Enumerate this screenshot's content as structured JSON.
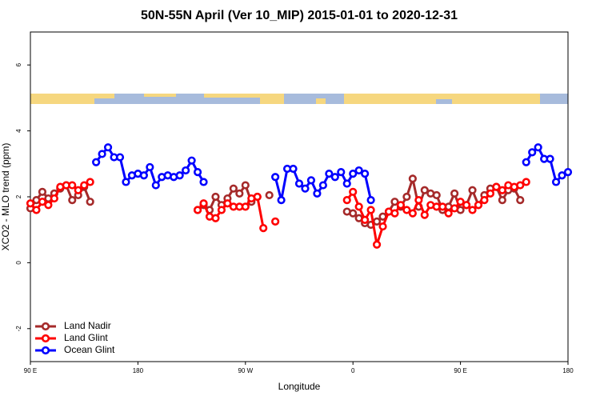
{
  "chart_data": {
    "type": "line",
    "title": "50N-55N April (Ver 10_MIP)   2015-01-01 to 2020-12-31",
    "xlabel": "Longitude",
    "ylabel": "XCO2 - MLO trend (ppm)",
    "x": [
      90,
      95,
      100,
      105,
      110,
      115,
      120,
      125,
      130,
      135,
      140,
      145,
      150,
      155,
      160,
      165,
      170,
      175,
      180,
      185,
      190,
      195,
      200,
      205,
      210,
      215,
      220,
      225,
      230,
      235,
      240,
      245,
      250,
      255,
      260,
      265,
      270,
      275,
      280,
      285,
      290,
      295,
      300,
      305,
      310,
      315,
      320,
      325,
      330,
      335,
      340,
      345,
      350,
      355,
      360,
      365,
      370,
      375,
      380,
      385,
      390,
      395,
      400,
      405,
      410,
      415,
      420,
      425,
      430,
      435,
      440,
      445,
      450,
      455,
      460,
      465,
      470,
      475,
      480,
      485,
      490,
      495,
      500,
      505,
      510,
      515,
      520,
      525,
      530,
      535,
      540
    ],
    "xlim": [
      90,
      540
    ],
    "xticks": [
      {
        "value": 90,
        "label": "90 E"
      },
      {
        "value": 180,
        "label": "180"
      },
      {
        "value": 270,
        "label": "90 W"
      },
      {
        "value": 360,
        "label": "0"
      },
      {
        "value": 450,
        "label": "90 E"
      },
      {
        "value": 540,
        "label": "180"
      }
    ],
    "ylim": [
      -3,
      7
    ],
    "yticks": [
      -2,
      0,
      2,
      4,
      6
    ],
    "legend": "bottom-left",
    "series": [
      {
        "name": "Land Nadir",
        "color": "#a52a2a",
        "values": [
          1.65,
          1.9,
          2.15,
          1.95,
          2.1,
          2.25,
          2.35,
          1.9,
          2.05,
          2.3,
          1.85,
          null,
          null,
          null,
          null,
          null,
          null,
          null,
          null,
          null,
          null,
          null,
          null,
          null,
          null,
          null,
          null,
          null,
          1.6,
          1.75,
          1.6,
          2.0,
          1.75,
          1.95,
          2.25,
          2.1,
          2.35,
          1.85,
          2.0,
          null,
          2.05,
          null,
          null,
          null,
          null,
          null,
          null,
          null,
          null,
          null,
          null,
          null,
          null,
          1.55,
          1.5,
          1.35,
          1.2,
          1.15,
          1.25,
          1.4,
          1.55,
          1.85,
          1.7,
          2.0,
          2.55,
          1.7,
          2.2,
          2.1,
          2.05,
          1.6,
          1.7,
          2.1,
          1.6,
          1.75,
          2.2,
          1.75,
          2.05,
          2.25,
          2.3,
          1.9,
          2.2,
          2.25,
          1.9,
          null,
          null,
          null,
          null,
          null,
          null,
          null,
          null
        ]
      },
      {
        "name": "Land Glint",
        "color": "#ff0000",
        "values": [
          1.8,
          1.6,
          1.85,
          1.75,
          1.95,
          2.3,
          2.35,
          2.35,
          2.2,
          2.35,
          2.45,
          null,
          null,
          null,
          null,
          null,
          null,
          null,
          null,
          null,
          null,
          null,
          null,
          null,
          null,
          null,
          null,
          null,
          1.6,
          1.8,
          1.4,
          1.35,
          1.6,
          1.8,
          1.7,
          1.7,
          1.7,
          1.95,
          2.0,
          1.05,
          null,
          1.25,
          null,
          null,
          null,
          null,
          null,
          null,
          null,
          null,
          null,
          null,
          null,
          1.9,
          2.15,
          1.7,
          1.3,
          1.6,
          0.55,
          1.1,
          1.55,
          1.5,
          1.75,
          1.6,
          1.5,
          1.9,
          1.45,
          1.75,
          1.7,
          1.7,
          1.5,
          1.65,
          1.85,
          1.75,
          1.6,
          1.75,
          1.9,
          2.1,
          2.3,
          2.2,
          2.35,
          2.3,
          2.35,
          2.45,
          null,
          null,
          null,
          null,
          null,
          null,
          null
        ]
      },
      {
        "name": "Ocean Glint",
        "color": "#0000ff",
        "values": [
          null,
          null,
          null,
          null,
          null,
          null,
          null,
          null,
          null,
          null,
          null,
          3.05,
          3.3,
          3.5,
          3.2,
          3.2,
          2.45,
          2.65,
          2.7,
          2.65,
          2.9,
          2.35,
          2.6,
          2.65,
          2.6,
          2.65,
          2.8,
          3.1,
          2.75,
          2.45,
          null,
          null,
          null,
          null,
          null,
          null,
          null,
          null,
          null,
          null,
          null,
          2.6,
          1.9,
          2.85,
          2.85,
          2.4,
          2.25,
          2.5,
          2.1,
          2.35,
          2.7,
          2.6,
          2.75,
          2.4,
          2.7,
          2.8,
          2.7,
          1.9,
          null,
          null,
          null,
          null,
          null,
          null,
          null,
          null,
          null,
          null,
          null,
          null,
          null,
          null,
          null,
          null,
          null,
          null,
          null,
          null,
          null,
          null,
          null,
          null,
          null,
          3.05,
          3.35,
          3.5,
          3.15,
          3.15,
          2.45,
          2.65,
          2.75
        ]
      }
    ]
  }
}
